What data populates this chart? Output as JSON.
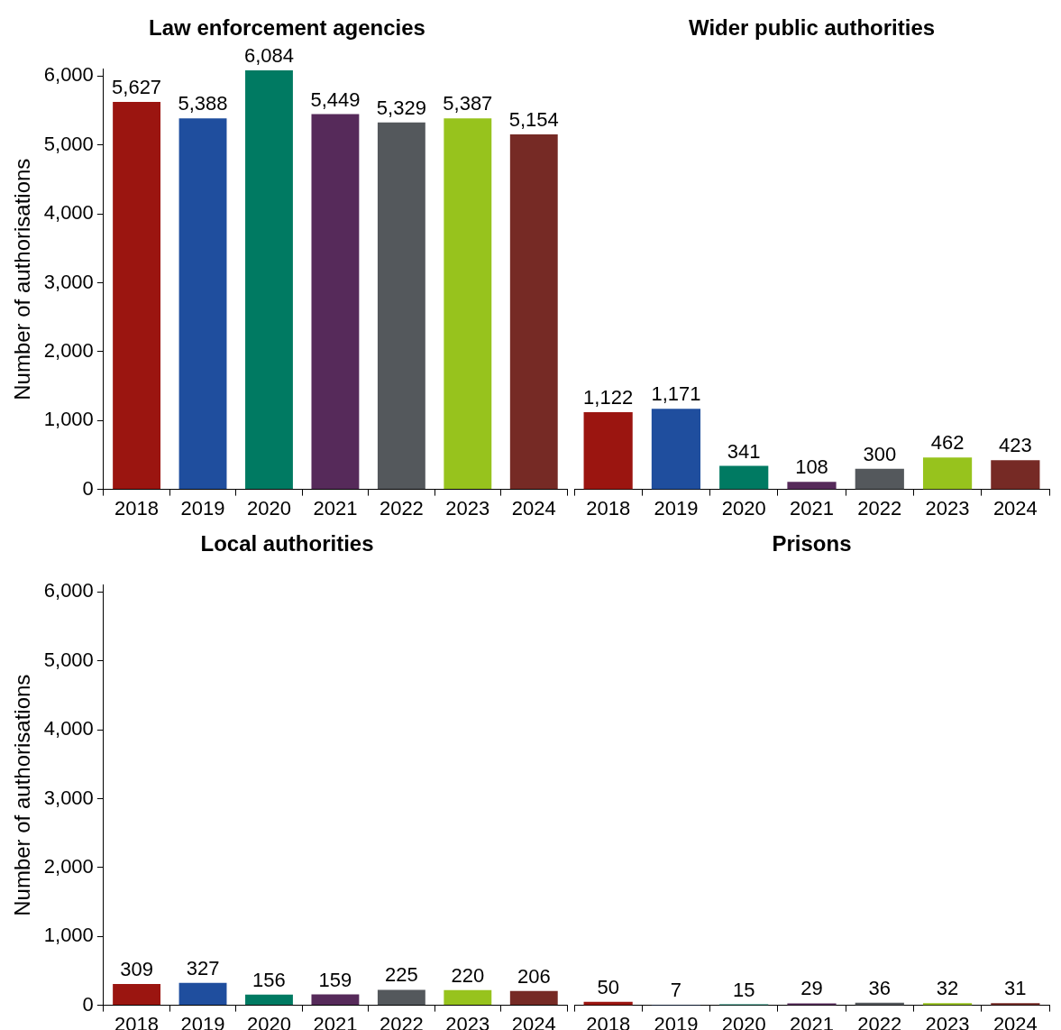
{
  "chart_data": [
    {
      "type": "bar",
      "title": "Law enforcement agencies",
      "ylabel": "Number of authorisations",
      "categories": [
        "2018",
        "2019",
        "2020",
        "2021",
        "2022",
        "2023",
        "2024"
      ],
      "values": [
        5627,
        5388,
        6084,
        5449,
        5329,
        5387,
        5154
      ],
      "value_labels": [
        "5,627",
        "5,388",
        "6,084",
        "5,449",
        "5,329",
        "5,387",
        "5,154"
      ],
      "colors": [
        "#9b1510",
        "#1f4e9e",
        "#007a62",
        "#562a5a",
        "#54585c",
        "#97c31d",
        "#762a25"
      ],
      "ylim": [
        0,
        6100
      ],
      "yticks": [
        {
          "value": 0,
          "label": "0"
        },
        {
          "value": 1000,
          "label": "1,000"
        },
        {
          "value": 2000,
          "label": "2,000"
        },
        {
          "value": 3000,
          "label": "3,000"
        },
        {
          "value": 4000,
          "label": "4,000"
        },
        {
          "value": 5000,
          "label": "5,000"
        },
        {
          "value": 6000,
          "label": "6,000"
        }
      ]
    },
    {
      "type": "bar",
      "title": "Wider public authorities",
      "categories": [
        "2018",
        "2019",
        "2020",
        "2021",
        "2022",
        "2023",
        "2024"
      ],
      "values": [
        1122,
        1171,
        341,
        108,
        300,
        462,
        423
      ],
      "value_labels": [
        "1,122",
        "1,171",
        "341",
        "108",
        "300",
        "462",
        "423"
      ],
      "colors": [
        "#9b1510",
        "#1f4e9e",
        "#007a62",
        "#562a5a",
        "#54585c",
        "#97c31d",
        "#762a25"
      ],
      "tick_labels": "x"
    },
    {
      "type": "bar",
      "title": "Local authorities",
      "ylabel": "Number of authorisations",
      "categories": [
        "2018",
        "2019",
        "2020",
        "2021",
        "2022",
        "2023",
        "2024"
      ],
      "values": [
        309,
        327,
        156,
        159,
        225,
        220,
        206
      ],
      "value_labels": [
        "309",
        "327",
        "156",
        "159",
        "225",
        "220",
        "206"
      ],
      "colors": [
        "#9b1510",
        "#1f4e9e",
        "#007a62",
        "#562a5a",
        "#54585c",
        "#97c31d",
        "#762a25"
      ],
      "ylim": [
        0,
        6100
      ],
      "yticks": [
        {
          "value": 0,
          "label": "0"
        },
        {
          "value": 1000,
          "label": "1,000"
        },
        {
          "value": 2000,
          "label": "2,000"
        },
        {
          "value": 3000,
          "label": "3,000"
        },
        {
          "value": 4000,
          "label": "4,000"
        },
        {
          "value": 5000,
          "label": "5,000"
        },
        {
          "value": 6000,
          "label": "6,000"
        }
      ]
    },
    {
      "type": "bar",
      "title": "Prisons",
      "categories": [
        "2018",
        "2019",
        "2020",
        "2021",
        "2022",
        "2023",
        "2024"
      ],
      "values": [
        50,
        7,
        15,
        29,
        36,
        32,
        31
      ],
      "value_labels": [
        "50",
        "7",
        "15",
        "29",
        "36",
        "32",
        "31"
      ],
      "colors": [
        "#9b1510",
        "#1f4e9e",
        "#007a62",
        "#562a5a",
        "#54585c",
        "#97c31d",
        "#762a25"
      ],
      "tick_labels": "x"
    }
  ]
}
